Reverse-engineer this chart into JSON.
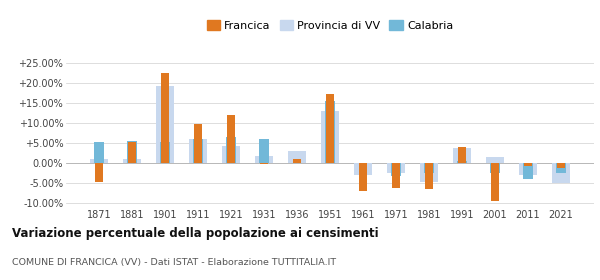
{
  "years": [
    1871,
    1881,
    1901,
    1911,
    1921,
    1931,
    1936,
    1951,
    1961,
    1971,
    1981,
    1991,
    2001,
    2011,
    2021
  ],
  "francica": [
    -4.8,
    5.2,
    22.5,
    9.7,
    12.0,
    -0.3,
    1.0,
    17.2,
    -7.0,
    -6.2,
    -6.5,
    4.0,
    -9.5,
    -0.8,
    -1.2
  ],
  "provincia_vv": [
    1.0,
    1.0,
    19.2,
    6.1,
    4.3,
    1.7,
    3.0,
    13.0,
    -3.0,
    -2.5,
    -4.8,
    3.7,
    1.5,
    -3.0,
    -5.0
  ],
  "calabria": [
    5.3,
    5.6,
    5.2,
    6.1,
    6.5,
    6.0,
    null,
    15.5,
    null,
    -3.2,
    -2.5,
    0.6,
    -2.5,
    -4.0,
    -2.5
  ],
  "color_francica": "#e07820",
  "color_provincia": "#c8d8ee",
  "color_calabria": "#72b8d8",
  "background": "#ffffff",
  "grid_color": "#d0d0d0",
  "title": "Variazione percentuale della popolazione ai censimenti",
  "subtitle": "COMUNE DI FRANCICA (VV) - Dati ISTAT - Elaborazione TUTTITALIA.IT",
  "ylim": [
    -11.0,
    27.5
  ],
  "yticks": [
    -10.0,
    -5.0,
    0.0,
    5.0,
    10.0,
    15.0,
    20.0,
    25.0
  ]
}
